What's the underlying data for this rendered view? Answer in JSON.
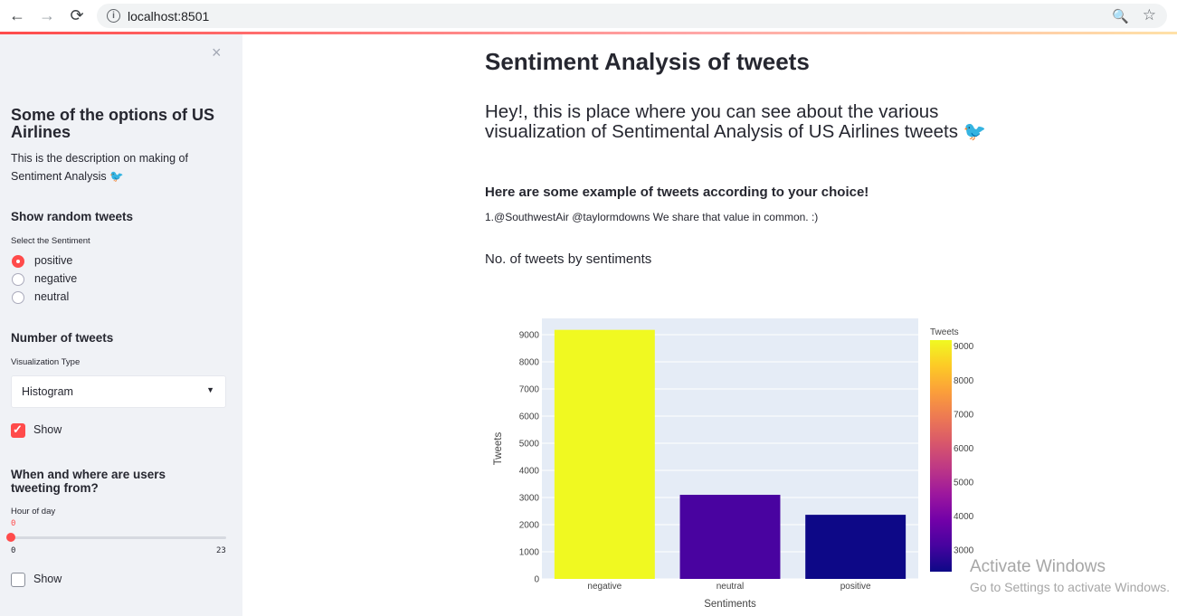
{
  "browser": {
    "url": "localhost:8501",
    "back_icon": "←",
    "forward_icon": "→",
    "reload_icon": "⟳",
    "info_icon": "i",
    "zoom_icon": "🔍",
    "star_icon": "☆"
  },
  "sidebar": {
    "close_icon": "×",
    "title": "Some of the options of US Airlines",
    "description": "This is the description on making of Sentiment Analysis 🐦",
    "random_tweets": {
      "heading": "Show random tweets",
      "label": "Select the Sentiment",
      "options": [
        "positive",
        "negative",
        "neutral"
      ],
      "selected": "positive"
    },
    "num_tweets": {
      "heading": "Number of tweets",
      "label": "Visualization Type",
      "selected": "Histogram",
      "show_label": "Show",
      "show_checked": true
    },
    "when_where": {
      "heading": "When and where are users tweeting from?",
      "label": "Hour of day",
      "slider_value": "0",
      "slider_min": "0",
      "slider_max": "23",
      "show_label": "Show",
      "show_checked": false
    }
  },
  "main": {
    "title": "Sentiment Analysis of tweets",
    "subtitle": "Hey!, this is place where you can see about the various visualization of Sentimental Analysis of US Airlines tweets 🐦",
    "example_heading": "Here are some example of tweets according to your choice!",
    "example_tweet": "1.@SouthwestAir @taylormdowns We share that value in common. :)",
    "chart_heading": "No. of tweets by sentiments"
  },
  "watermark": {
    "line1": "Activate Windows",
    "line2": "Go to Settings to activate Windows."
  },
  "chart_data": {
    "type": "bar",
    "categories": [
      "negative",
      "neutral",
      "positive"
    ],
    "values": [
      9178,
      3099,
      2363
    ],
    "xlabel": "Sentiments",
    "ylabel": "Tweets",
    "ylim": [
      0,
      9600
    ],
    "yticks": [
      0,
      1000,
      2000,
      3000,
      4000,
      5000,
      6000,
      7000,
      8000,
      9000
    ],
    "colorbar": {
      "title": "Tweets",
      "ticks": [
        3000,
        4000,
        5000,
        6000,
        7000,
        8000,
        9000
      ],
      "range": [
        2363,
        9178
      ]
    },
    "colors": [
      "#f0f921",
      "#4903a0",
      "#0d0887"
    ],
    "plot_bg": "#e5ecf6",
    "grid": true
  }
}
